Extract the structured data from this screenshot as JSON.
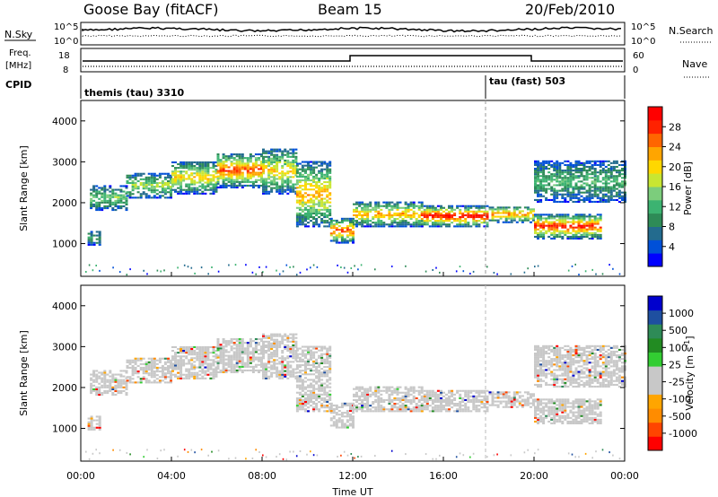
{
  "header": {
    "station": "Goose Bay (fitACF)",
    "beam": "Beam 15",
    "date": "20/Feb/2010"
  },
  "noise_panel": {
    "left_label": "N.Sky",
    "right_label": "N.Search",
    "left_ticks": [
      "10^5",
      "10^0"
    ],
    "right_ticks": [
      "10^5",
      "10^0"
    ]
  },
  "freq_panel": {
    "left_label_line1": "Freq.",
    "left_label_line2": "[MHz]",
    "right_label": "Nave",
    "left_ticks": [
      "18",
      "8"
    ],
    "right_ticks": [
      "60",
      "0"
    ]
  },
  "cpid_panel": {
    "label": "CPID",
    "mode1": "themis (tau) 3310",
    "mode2": "tau (fast) 503"
  },
  "chart_data": [
    {
      "type": "heatmap",
      "name": "Power",
      "ylabel": "Slant Range [km]",
      "yticks": [
        "1000",
        "2000",
        "3000",
        "4000"
      ],
      "ylim": [
        200,
        4500
      ],
      "xlim": [
        0,
        24
      ],
      "colorbar": {
        "label": "Power [dB]",
        "ticks": [
          "4",
          "8",
          "12",
          "16",
          "20",
          "24",
          "28"
        ],
        "colors": [
          "#0000ff",
          "#0050d8",
          "#236b8e",
          "#2e8b57",
          "#3cb371",
          "#7ccd7c",
          "#c8e632",
          "#ffd700",
          "#ffa500",
          "#ff6600",
          "#ff2200",
          "#ff0000"
        ]
      },
      "echo_bands": [
        {
          "t_start": 0.3,
          "t_end": 0.9,
          "r_low": 950,
          "r_high": 1300,
          "level": 6
        },
        {
          "t_start": 0.4,
          "t_end": 2.0,
          "r_low": 1800,
          "r_high": 2400,
          "level": 10
        },
        {
          "t_start": 2.0,
          "t_end": 4.0,
          "r_low": 2100,
          "r_high": 2700,
          "level": 12
        },
        {
          "t_start": 4.0,
          "t_end": 6.0,
          "r_low": 2200,
          "r_high": 3000,
          "level": 16
        },
        {
          "t_start": 6.0,
          "t_end": 8.0,
          "r_low": 2350,
          "r_high": 3200,
          "level": 22
        },
        {
          "t_start": 8.0,
          "t_end": 9.5,
          "r_low": 2200,
          "r_high": 3300,
          "level": 16
        },
        {
          "t_start": 9.5,
          "t_end": 11.0,
          "r_low": 1400,
          "r_high": 3000,
          "level": 18
        },
        {
          "t_start": 11.0,
          "t_end": 12.0,
          "r_low": 1000,
          "r_high": 1600,
          "level": 22
        },
        {
          "t_start": 12.0,
          "t_end": 15.0,
          "r_low": 1400,
          "r_high": 2000,
          "level": 18
        },
        {
          "t_start": 15.0,
          "t_end": 18.0,
          "r_low": 1400,
          "r_high": 1900,
          "level": 26
        },
        {
          "t_start": 18.0,
          "t_end": 20.0,
          "r_low": 1500,
          "r_high": 1900,
          "level": 20
        },
        {
          "t_start": 20.0,
          "t_end": 23.0,
          "r_low": 1100,
          "r_high": 1700,
          "level": 24
        },
        {
          "t_start": 20.0,
          "t_end": 24.0,
          "r_low": 2000,
          "r_high": 3000,
          "level": 8
        }
      ]
    },
    {
      "type": "heatmap",
      "name": "Velocity",
      "ylabel": "Slant Range [km]",
      "yticks": [
        "1000",
        "2000",
        "3000",
        "4000"
      ],
      "ylim": [
        200,
        4500
      ],
      "xlim": [
        0,
        24
      ],
      "colorbar": {
        "label_main": "Velocity [m s",
        "label_sup": "-1",
        "label_end": "]",
        "ticks": [
          "-1000",
          "-500",
          "-100",
          "-25",
          "25",
          "100",
          "500",
          "1000"
        ],
        "colors": [
          "#ff0000",
          "#ff4500",
          "#ff8c00",
          "#ffa500",
          "#c8c8c8",
          "#c8c8c8",
          "#32cd32",
          "#228b22",
          "#2e8b57",
          "#1e4fa0",
          "#0000cd"
        ]
      },
      "ground_scatter_color": "#c8c8c8"
    }
  ],
  "x_axis": {
    "label": "Time UT",
    "ticks": [
      "00:00",
      "04:00",
      "08:00",
      "12:00",
      "16:00",
      "20:00",
      "00:00"
    ],
    "values": [
      0,
      4,
      8,
      12,
      16,
      20,
      24
    ]
  }
}
